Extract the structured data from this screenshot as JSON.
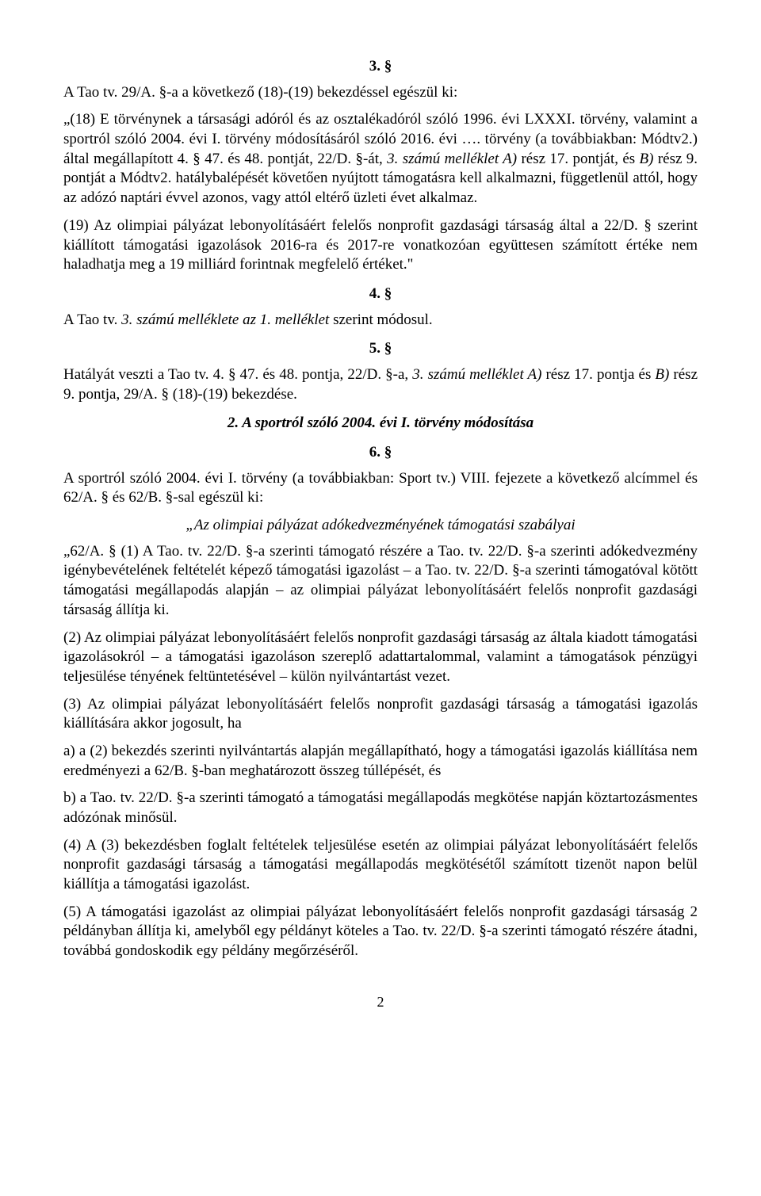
{
  "doc": {
    "background_color": "#ffffff",
    "text_color": "#000000",
    "font_family": "Times New Roman",
    "body_fontsize_pt": 14,
    "page_number": "2",
    "section3": {
      "num": "3. §",
      "p1": "A Tao tv. 29/A. §-a a következő (18)-(19) bekezdéssel egészül ki:",
      "p2_a": "„(18) E törvénynek a társasági adóról és az osztalékadóról szóló 1996. évi LXXXI. törvény, valamint a sportról szóló 2004. évi I. törvény módosításáról szóló 2016. évi …. törvény (a továbbiakban: Módtv2.) által megállapított 4. § 47. és 48. pontját, 22/D. §-át, ",
      "p2_i": "3. számú melléklet A) ",
      "p2_b": "rész 17. pontját, és ",
      "p2_i2": "B) ",
      "p2_c": "rész 9. pontját a Módtv2. hatálybalépését követően nyújtott támogatásra kell alkalmazni, függetlenül attól, hogy az adózó naptári évvel azonos, vagy attól eltérő üzleti évet alkalmaz.",
      "p3": "(19) Az olimpiai pályázat lebonyolításáért felelős nonprofit gazdasági társaság által a 22/D. § szerint kiállított támogatási igazolások 2016-ra és 2017-re vonatkozóan együttesen számított értéke nem haladhatja meg a 19 milliárd forintnak megfelelő értéket.\""
    },
    "section4": {
      "num": "4. §",
      "p1_a": "A Tao tv. ",
      "p1_i": "3. számú melléklete az 1. melléklet ",
      "p1_b": "szerint módosul."
    },
    "section5": {
      "num": "5. §",
      "p1_a": "Hatályát veszti a Tao tv. 4. § 47. és 48. pontja, 22/D. §-a, ",
      "p1_i": "3. számú melléklet A) ",
      "p1_b": "rész 17. pontja és ",
      "p1_i2": "B) ",
      "p1_c": "rész 9. pontja, 29/A. § (18)-(19) bekezdése."
    },
    "heading2": "2. A sportról szóló 2004. évi I. törvény módosítása",
    "section6": {
      "num": "6. §",
      "p1": "A sportról szóló 2004. évi I. törvény (a továbbiakban: Sport tv.) VIII. fejezete a következő alcímmel és 62/A. § és 62/B. §-sal egészül ki:",
      "sub_a": "„Az olimpiai ",
      "sub_i": "pályázat adókedvezményének támogatási szabályai",
      "p2": "„62/A. § (1) A Tao. tv. 22/D. §-a szerinti támogató részére a Tao. tv. 22/D. §-a szerinti adókedvezmény igénybevételének feltételét képező támogatási igazolást – a Tao. tv. 22/D. §-a szerinti támogatóval kötött támogatási megállapodás alapján – az olimpiai pályázat lebonyolításáért felelős nonprofit gazdasági társaság állítja ki.",
      "p3": "(2) Az olimpiai pályázat lebonyolításáért felelős nonprofit gazdasági társaság az általa kiadott támogatási igazolásokról – a támogatási igazoláson szereplő adattartalommal, valamint a támogatások pénzügyi teljesülése tényének feltüntetésével – külön nyilvántartást vezet.",
      "p4": "(3) Az olimpiai pályázat lebonyolításáért felelős nonprofit gazdasági társaság a támogatási igazolás kiállítására akkor jogosult, ha",
      "p5": "a) a (2) bekezdés szerinti nyilvántartás alapján megállapítható, hogy a támogatási igazolás kiállítása nem eredményezi a 62/B. §-ban meghatározott összeg túllépését, és",
      "p6": "b) a Tao. tv. 22/D. §-a szerinti támogató a támogatási megállapodás megkötése napján köztartozásmentes adózónak minősül.",
      "p7": "(4) A (3) bekezdésben foglalt feltételek teljesülése esetén az olimpiai pályázat lebonyolításáért felelős nonprofit gazdasági társaság a támogatási megállapodás megkötésétől számított tizenöt napon belül kiállítja a támogatási igazolást.",
      "p8": "(5) A támogatási igazolást az olimpiai pályázat lebonyolításáért felelős nonprofit gazdasági társaság 2 példányban állítja ki, amelyből egy példányt köteles a Tao. tv. 22/D. §-a szerinti támogató részére átadni, továbbá gondoskodik egy példány megőrzéséről."
    }
  }
}
